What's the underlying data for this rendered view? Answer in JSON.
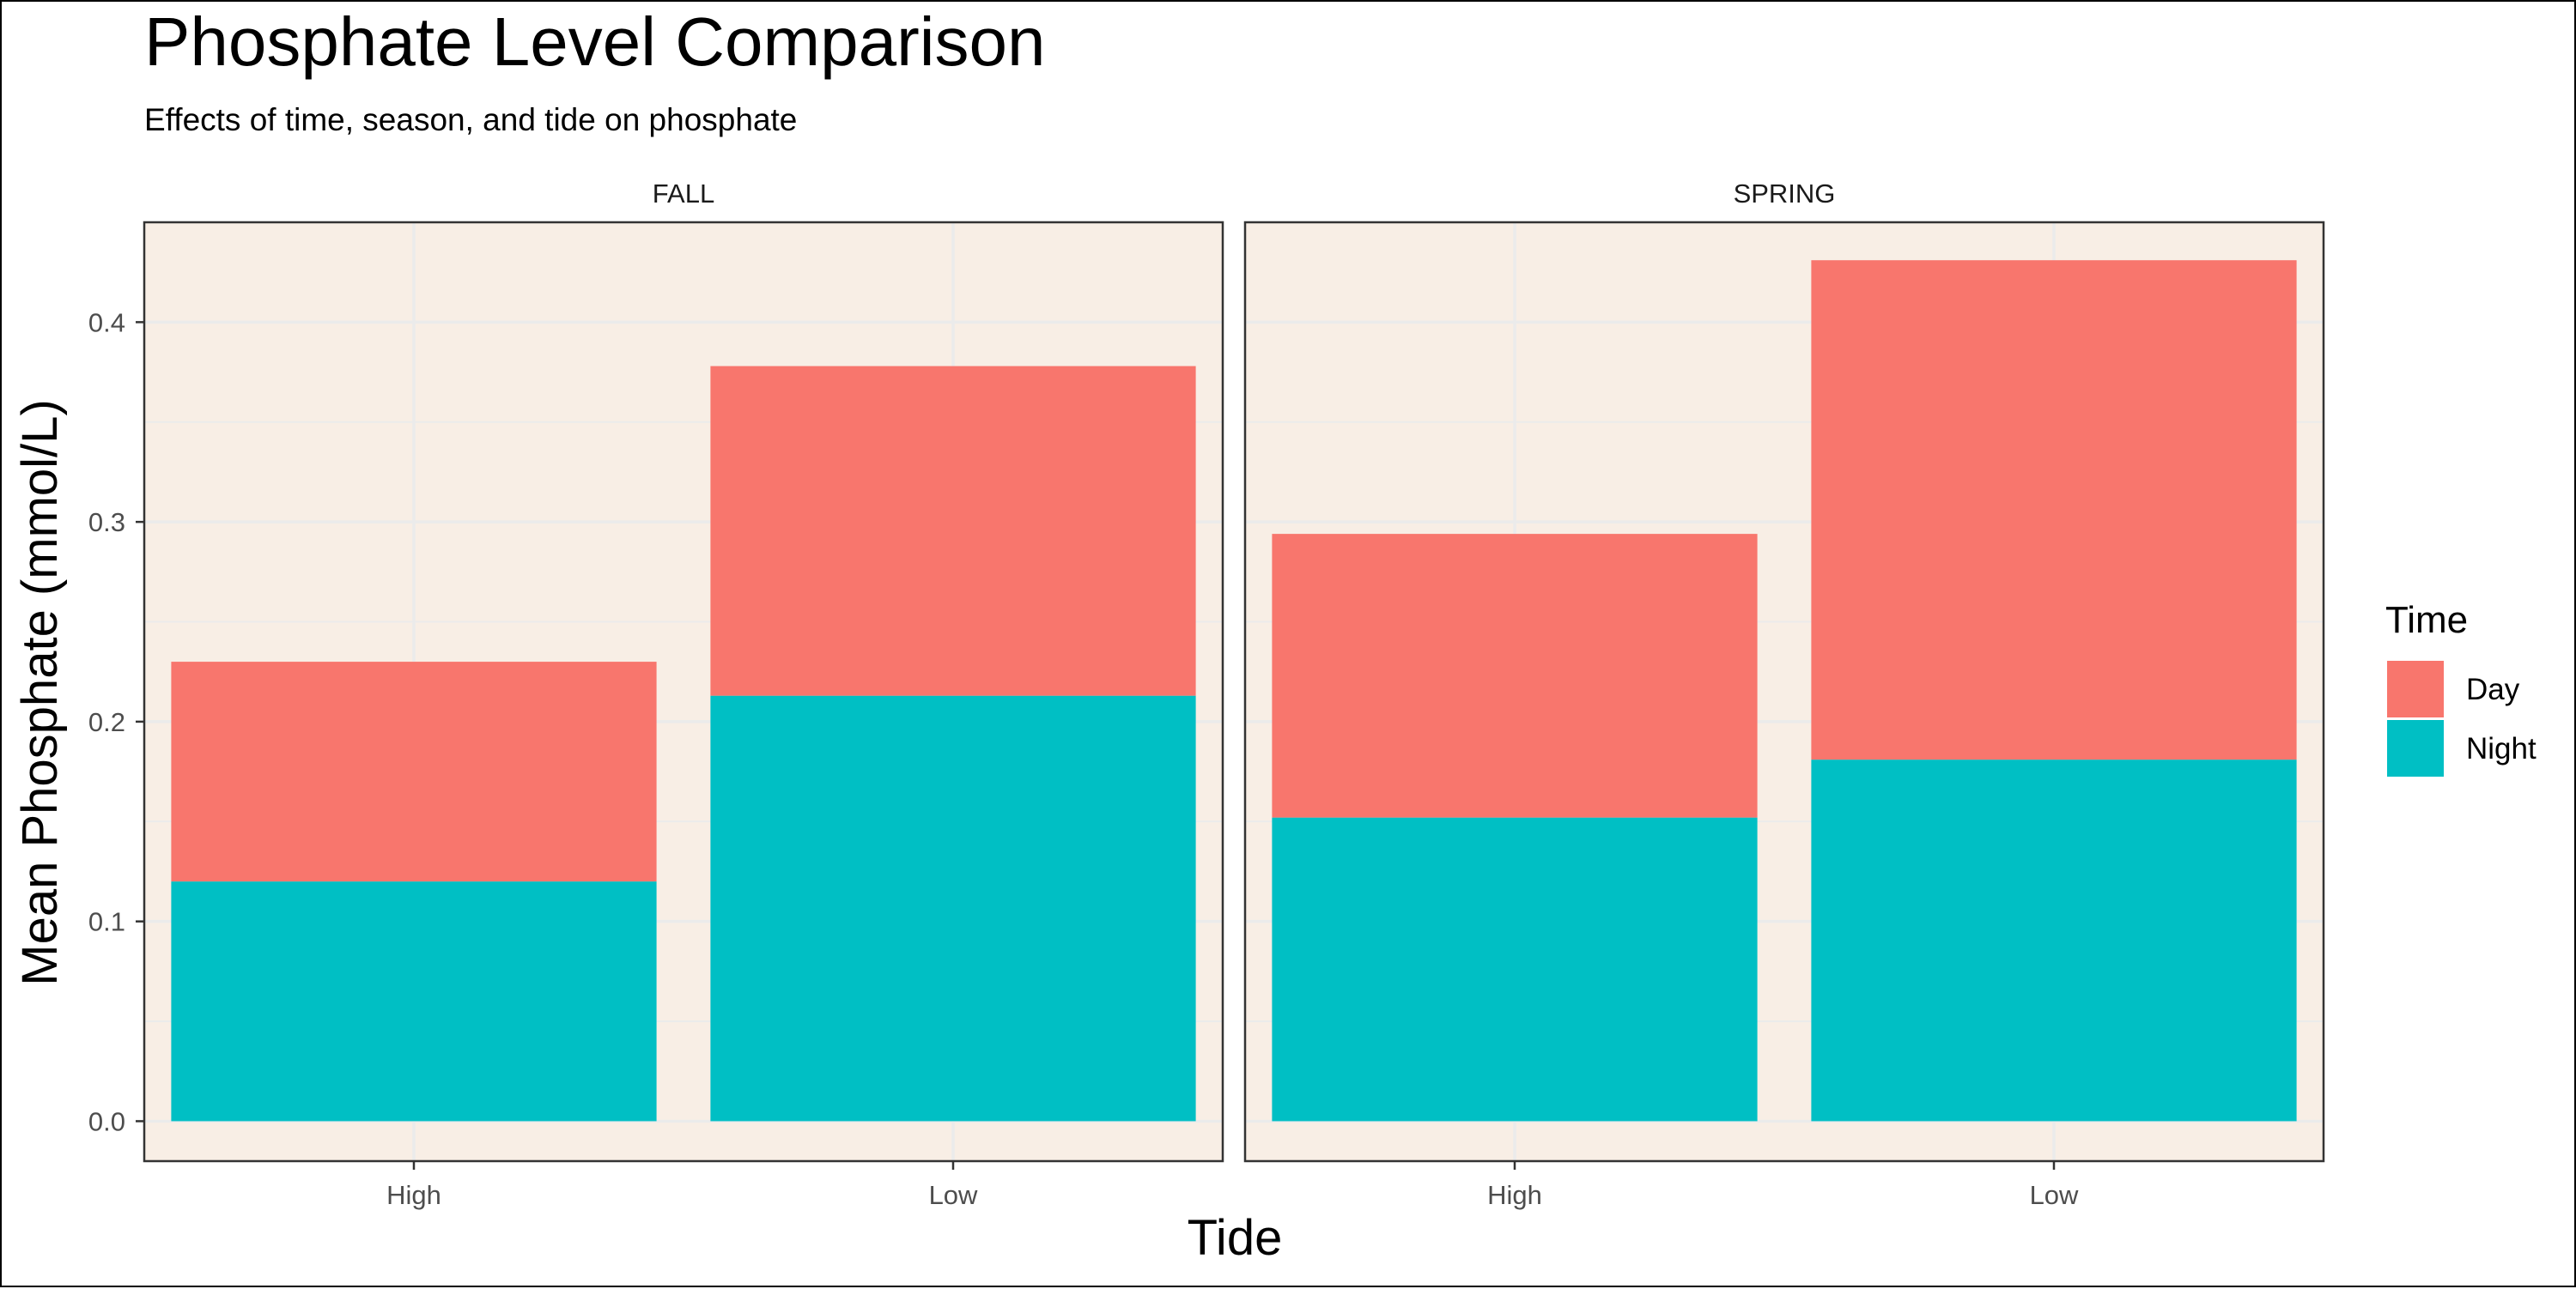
{
  "chart_data": {
    "type": "bar",
    "stacked": true,
    "title": "Phosphate Level Comparison",
    "subtitle": "Effects of time, season, and tide on phosphate",
    "xlabel": "Tide",
    "ylabel": "Mean Phosphate (mmol/L)",
    "ylim": [
      -0.02,
      0.45
    ],
    "yticks": [
      "0.0",
      "0.1",
      "0.2",
      "0.3",
      "0.4"
    ],
    "ytick_values": [
      0,
      0.1,
      0.2,
      0.3,
      0.4
    ],
    "categories": [
      "High",
      "Low"
    ],
    "facets": [
      {
        "name": "FALL",
        "series": [
          {
            "name": "Night",
            "values": [
              0.12,
              0.213
            ]
          },
          {
            "name": "Day",
            "values": [
              0.11,
              0.165
            ]
          }
        ]
      },
      {
        "name": "SPRING",
        "series": [
          {
            "name": "Night",
            "values": [
              0.152,
              0.181
            ]
          },
          {
            "name": "Day",
            "values": [
              0.142,
              0.25
            ]
          }
        ]
      }
    ],
    "legend": {
      "title": "Time",
      "placement": "right",
      "entries": [
        {
          "label": "Day",
          "color": "#F8766D"
        },
        {
          "label": "Night",
          "color": "#00BFC4"
        }
      ]
    },
    "grid": true,
    "panel_background": "#F8EEE5",
    "grid_color": "#EBEBEB"
  }
}
